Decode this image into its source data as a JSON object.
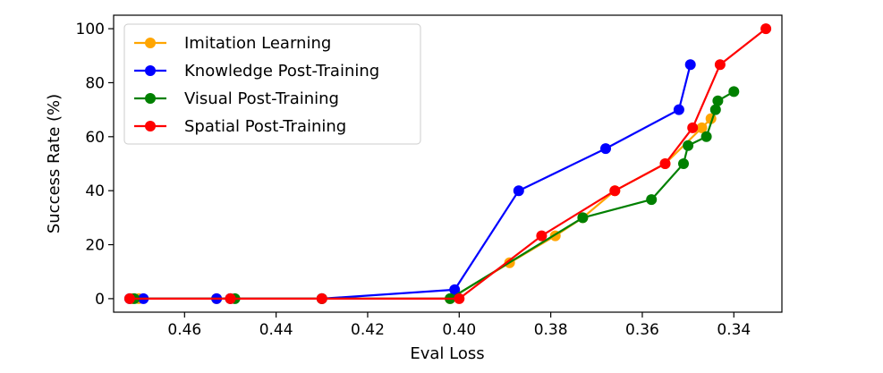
{
  "chart_data": {
    "type": "line",
    "title": "",
    "xlabel": "Eval Loss",
    "ylabel": "Success Rate (%)",
    "x_inverted": true,
    "xlim": [
      0.4755,
      0.3295
    ],
    "ylim": [
      -5,
      105
    ],
    "xticks": [
      0.46,
      0.44,
      0.42,
      0.4,
      0.38,
      0.36,
      0.34
    ],
    "xtick_labels": [
      "0.46",
      "0.44",
      "0.42",
      "0.40",
      "0.38",
      "0.36",
      "0.34"
    ],
    "yticks": [
      0,
      20,
      40,
      60,
      80,
      100
    ],
    "ytick_labels": [
      "0",
      "20",
      "40",
      "60",
      "80",
      "100"
    ],
    "grid": false,
    "legend_position": "upper-left",
    "series": [
      {
        "name": "Imitation Learning",
        "color": "#ffa500",
        "x": [
          0.4715,
          0.47,
          0.453,
          0.45,
          0.43,
          0.402,
          0.389,
          0.379,
          0.373,
          0.366,
          0.355,
          0.347,
          0.345
        ],
        "y": [
          0,
          0,
          0,
          0,
          0,
          0,
          13.3,
          23.3,
          30.0,
          40.0,
          50.0,
          63.3,
          66.7
        ]
      },
      {
        "name": "Knowledge Post-Training",
        "color": "#0000ff",
        "x": [
          0.472,
          0.469,
          0.453,
          0.45,
          0.43,
          0.401,
          0.387,
          0.368,
          0.352,
          0.3495
        ],
        "y": [
          0,
          0,
          0,
          0,
          0,
          3.3,
          40.0,
          55.6,
          70.0,
          86.7
        ]
      },
      {
        "name": "Visual Post-Training",
        "color": "#008000",
        "x": [
          0.471,
          0.449,
          0.43,
          0.402,
          0.373,
          0.358,
          0.351,
          0.35,
          0.346,
          0.344,
          0.3435,
          0.34
        ],
        "y": [
          0,
          0,
          0,
          0,
          30.0,
          36.7,
          50.0,
          56.7,
          60.0,
          70.0,
          73.3,
          76.7
        ]
      },
      {
        "name": "Spatial Post-Training",
        "color": "#ff0000",
        "x": [
          0.472,
          0.45,
          0.43,
          0.4,
          0.382,
          0.366,
          0.355,
          0.349,
          0.343,
          0.333
        ],
        "y": [
          0,
          0,
          0,
          0,
          23.3,
          40.0,
          50.0,
          63.3,
          86.7,
          100.0
        ]
      }
    ]
  }
}
